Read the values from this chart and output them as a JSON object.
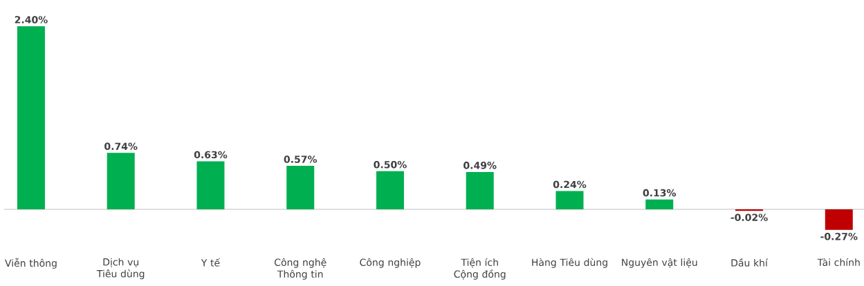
{
  "chart_data": {
    "type": "bar",
    "categories": [
      "Viễn thông",
      "Dịch vụ Tiêu dùng",
      "Y tế",
      "Công nghệ Thông tin",
      "Công nghiệp",
      "Tiện ích Cộng đồng",
      "Hàng Tiêu dùng",
      "Nguyên vật liệu",
      "Dầu khí",
      "Tài chính"
    ],
    "values": [
      2.4,
      0.74,
      0.63,
      0.57,
      0.5,
      0.49,
      0.24,
      0.13,
      -0.02,
      -0.27
    ],
    "colors": [
      "#00b050",
      "#00b050",
      "#00b050",
      "#00b050",
      "#00b050",
      "#00b050",
      "#00b050",
      "#00b050",
      "#c00000",
      "#c00000"
    ],
    "value_labels": [
      "2.40%",
      "0.74%",
      "0.63%",
      "0.57%",
      "0.50%",
      "0.49%",
      "0.24%",
      "0.13%",
      "-0.02%",
      "-0.27%"
    ]
  }
}
